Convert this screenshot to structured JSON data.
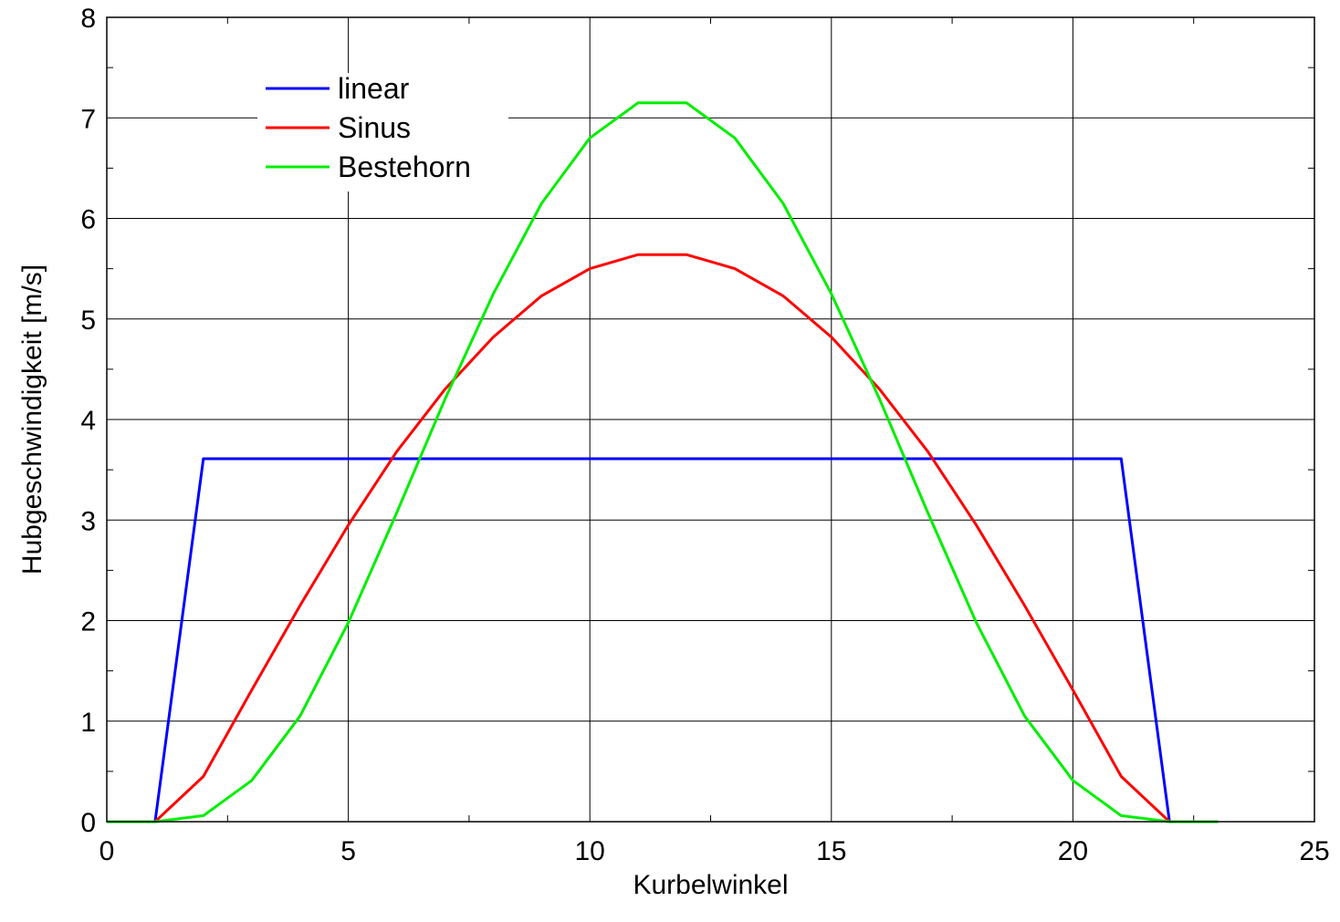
{
  "chart_data": {
    "type": "line",
    "xlabel": "Kurbelwinkel",
    "ylabel": "Hubgeschwindigkeit  [m/s]",
    "xlim": [
      0,
      25
    ],
    "ylim": [
      0,
      8
    ],
    "xticks": [
      0,
      5,
      10,
      15,
      20,
      25
    ],
    "yticks": [
      0,
      1,
      2,
      3,
      4,
      5,
      6,
      7,
      8
    ],
    "grid": true,
    "legend_position": "top-left",
    "series": [
      {
        "name": "linear",
        "color": "#0000ff",
        "x": [
          0,
          1,
          2,
          21,
          22
        ],
        "y": [
          0,
          0,
          3.61,
          3.61,
          0
        ]
      },
      {
        "name": "Sinus",
        "color": "#ff0000",
        "x": [
          0,
          1,
          2,
          3,
          4,
          5,
          6,
          7,
          8,
          9,
          10,
          11,
          12,
          13,
          14,
          15,
          16,
          17,
          18,
          19,
          20,
          21,
          22
        ],
        "y": [
          0,
          0,
          0.45,
          1.31,
          2.15,
          2.95,
          3.68,
          4.3,
          4.82,
          5.23,
          5.5,
          5.64,
          5.64,
          5.5,
          5.23,
          4.82,
          4.3,
          3.68,
          2.95,
          2.15,
          1.31,
          0.45,
          0
        ]
      },
      {
        "name": "Bestehorn",
        "color": "#00ee00",
        "x": [
          0,
          1,
          2,
          3,
          4,
          5,
          6,
          7,
          8,
          9,
          10,
          11,
          12,
          13,
          14,
          15,
          16,
          17,
          18,
          19,
          20,
          21,
          22,
          23
        ],
        "y": [
          0,
          0,
          0.06,
          0.41,
          1.05,
          1.98,
          3.07,
          4.2,
          5.25,
          6.15,
          6.8,
          7.15,
          7.15,
          6.8,
          6.15,
          5.25,
          4.2,
          3.07,
          1.98,
          1.05,
          0.41,
          0.06,
          0,
          0
        ]
      }
    ]
  }
}
